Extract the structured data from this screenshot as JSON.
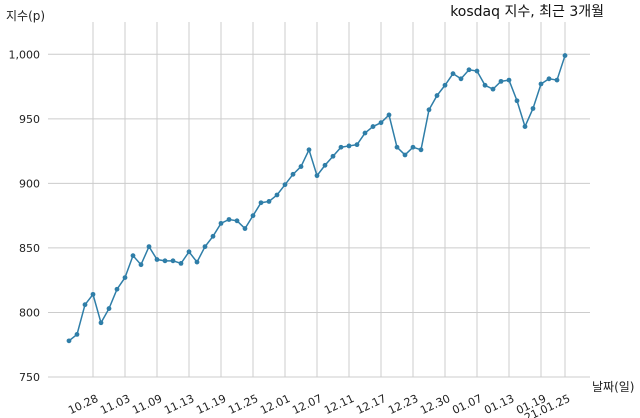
{
  "chart_data": {
    "type": "line",
    "title": "kosdaq 지수, 최근 3개월",
    "ylabel": "지수(p)",
    "xlabel": "날짜(일)",
    "ylim": [
      750,
      1025
    ],
    "yticks": [
      750,
      800,
      850,
      900,
      950,
      1000
    ],
    "ytick_labels": [
      "750",
      "800",
      "850",
      "900",
      "950",
      "1,000"
    ],
    "grid": true,
    "x_tick_labels": [
      "10.28",
      "11.03",
      "11.09",
      "11.13",
      "11.19",
      "11.25",
      "12.01",
      "12.07",
      "12.11",
      "12.17",
      "12.23",
      "12.30",
      "01.07",
      "01.13",
      "01.19",
      "21.01.25"
    ],
    "x_tick_indices": [
      3,
      7,
      11,
      15,
      19,
      23,
      27,
      31,
      35,
      39,
      43,
      47,
      51,
      55,
      59,
      62
    ],
    "series": [
      {
        "color": "#2f7ea8",
        "values": [
          778,
          783,
          806,
          814,
          792,
          803,
          818,
          827,
          844,
          837,
          851,
          841,
          840,
          840,
          838,
          847,
          839,
          851,
          859,
          869,
          872,
          871,
          865,
          875,
          885,
          886,
          891,
          899,
          907,
          913,
          926,
          906,
          914,
          921,
          928,
          929,
          930,
          939,
          944,
          947,
          953,
          928,
          922,
          928,
          926,
          957,
          968,
          976,
          985,
          981,
          988,
          987,
          976,
          973,
          979,
          980,
          964,
          944,
          958,
          977,
          981,
          980,
          999
        ]
      }
    ]
  }
}
